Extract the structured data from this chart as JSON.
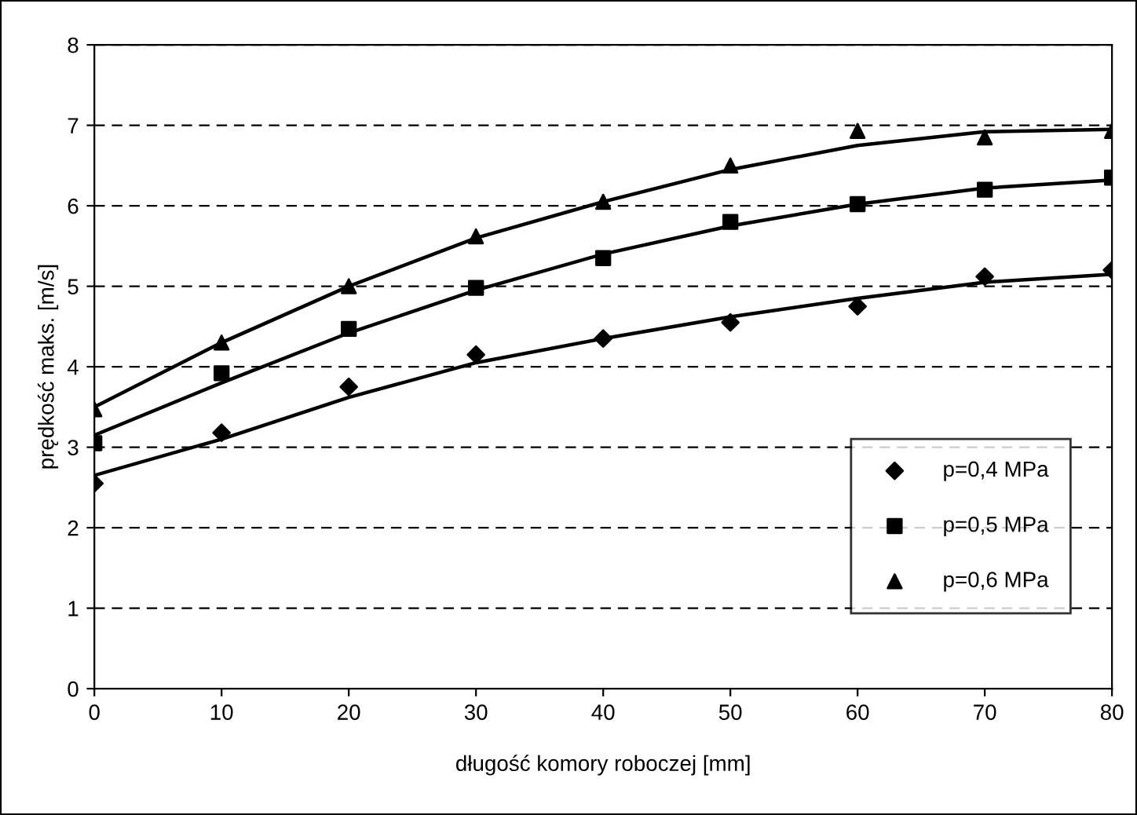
{
  "chart_data": {
    "type": "scatter",
    "xlabel": "długość komory roboczej [mm]",
    "ylabel": "prędkość maks. [m/s]",
    "xlim": [
      0,
      80
    ],
    "xticks": [
      0,
      10,
      20,
      30,
      40,
      50,
      60,
      70,
      80
    ],
    "ylim": [
      0,
      8
    ],
    "yticks": [
      0,
      1,
      2,
      3,
      4,
      5,
      6,
      7,
      8
    ],
    "grid": "y",
    "legend": "bottom right",
    "series": [
      {
        "name": "p=0,4 MPa",
        "marker": "diamond",
        "color": "#000000",
        "x": [
          0,
          10,
          20,
          30,
          40,
          50,
          60,
          70,
          80
        ],
        "values": [
          2.55,
          3.18,
          3.75,
          4.15,
          4.35,
          4.55,
          4.75,
          5.12,
          5.2
        ]
      },
      {
        "name": "p=0,5 MPa",
        "marker": "square",
        "color": "#000000",
        "x": [
          0,
          10,
          20,
          30,
          40,
          50,
          60,
          70,
          80
        ],
        "values": [
          3.05,
          3.92,
          4.47,
          4.98,
          5.35,
          5.8,
          6.02,
          6.2,
          6.35
        ]
      },
      {
        "name": "p=0,6 MPa",
        "marker": "triangle",
        "color": "#000000",
        "x": [
          0,
          10,
          20,
          30,
          40,
          50,
          60,
          70,
          80
        ],
        "values": [
          3.47,
          4.3,
          5.0,
          5.62,
          6.05,
          6.5,
          6.93,
          6.85,
          6.93
        ]
      },
      {
        "type": "line",
        "marker": "none",
        "line_style": "solid",
        "color": "#000000",
        "x": [
          0,
          10,
          20,
          30,
          40,
          50,
          60,
          70,
          80
        ],
        "values": [
          2.65,
          3.1,
          3.62,
          4.05,
          4.35,
          4.62,
          4.85,
          5.05,
          5.15
        ]
      },
      {
        "type": "line",
        "marker": "none",
        "line_style": "solid",
        "color": "#000000",
        "x": [
          0,
          10,
          20,
          30,
          40,
          50,
          60,
          70,
          80
        ],
        "values": [
          3.15,
          3.8,
          4.42,
          4.95,
          5.4,
          5.75,
          6.02,
          6.22,
          6.32
        ]
      },
      {
        "type": "line",
        "marker": "none",
        "line_style": "solid",
        "color": "#000000",
        "x": [
          0,
          10,
          20,
          30,
          40,
          50,
          60,
          70,
          80
        ],
        "values": [
          3.5,
          4.3,
          5.0,
          5.6,
          6.05,
          6.45,
          6.75,
          6.92,
          6.95
        ]
      }
    ]
  }
}
